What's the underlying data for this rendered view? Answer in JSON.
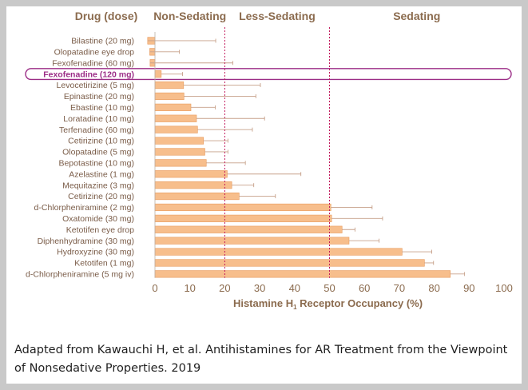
{
  "chart_data": {
    "type": "bar",
    "orientation": "horizontal",
    "xlabel_main": "Histamine H",
    "xlabel_sub": "1",
    "xlabel_rest": " Receptor Occupancy (%)",
    "xlim": [
      0,
      100
    ],
    "xticks": [
      0,
      10,
      20,
      30,
      40,
      50,
      60,
      70,
      80,
      90,
      100
    ],
    "category_header": "Drug (dose)",
    "zones": [
      {
        "label": "Non-Sedating",
        "from": 0,
        "to": 20
      },
      {
        "label": "Less-Sedating",
        "from": 20,
        "to": 50
      },
      {
        "label": "Sedating",
        "from": 50,
        "to": 100
      }
    ],
    "thresholds": [
      20,
      50
    ],
    "highlight": "Fexofenadine (120 mg)",
    "categories": [
      "Bilastine (20 mg)",
      "Olopatadine eye drop",
      "Fexofenadine (60 mg)",
      "Fexofenadine (120 mg)",
      "Levocetirizine (5 mg)",
      "Epinastine (20 mg)",
      "Ebastine (10 mg)",
      "Loratadine (10 mg)",
      "Terfenadine (60 mg)",
      "Cetirizine (10 mg)",
      "Olopatadine (5 mg)",
      "Bepotastine (10 mg)",
      "Azelastine (1 mg)",
      "Mequitazine (3 mg)",
      "Cetirizine (20 mg)",
      "d-Chlorpheniramine (2 mg)",
      "Oxatomide (30 mg)",
      "Ketotifen eye drop",
      "Diphenhydramine (30 mg)",
      "Hydroxyzine (30 mg)",
      "Ketotifen (1 mg)",
      "d-Chlorpheniramine (5 mg iv)"
    ],
    "values": [
      -2.1,
      -1.5,
      -1.4,
      1.8,
      8.2,
      8.3,
      10.3,
      11.9,
      12.2,
      13.9,
      14.3,
      14.7,
      20.7,
      22.0,
      24.1,
      50.4,
      50.6,
      53.6,
      55.6,
      70.8,
      77.2,
      84.6
    ],
    "errors": [
      19.5,
      8.5,
      23.7,
      6.1,
      22.0,
      20.6,
      7.0,
      19.5,
      15.7,
      7.0,
      6.6,
      11.2,
      21.1,
      6.3,
      10.4,
      11.8,
      14.6,
      3.7,
      8.6,
      8.5,
      2.6,
      4.1
    ]
  },
  "caption": {
    "text": "Adapted from Kawauchi H, et al. Antihistamines for AR Treatment from the Viewpoint of Nonsedative Properties. 2019"
  },
  "colors": {
    "bar": "#f7be8c",
    "bar_edge": "#e89a5c",
    "error": "#c7a18a",
    "threshold": "#c2185b",
    "highlight": "#9b2d86",
    "text": "#8b6b4e"
  }
}
